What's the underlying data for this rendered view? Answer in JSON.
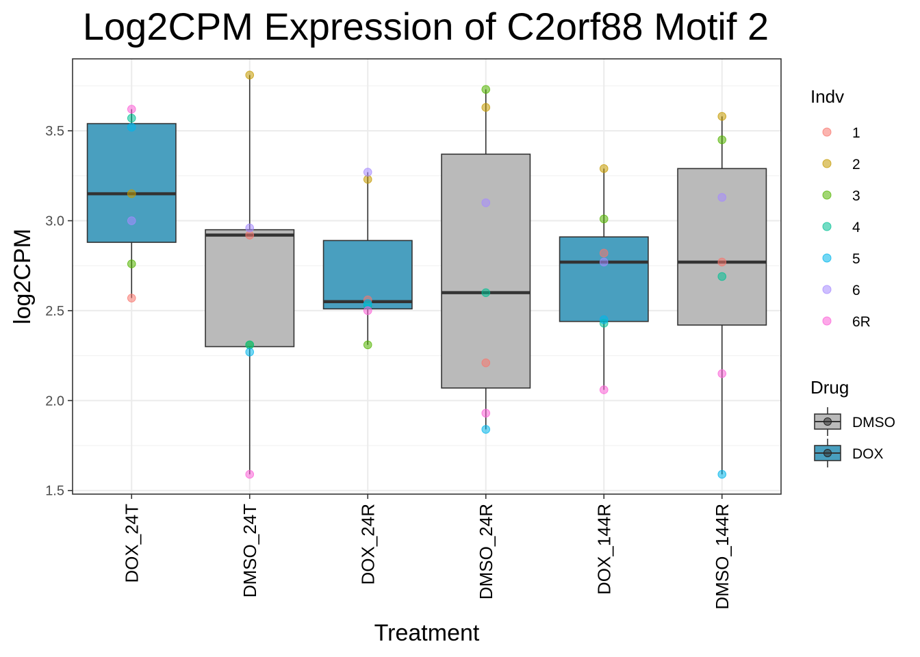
{
  "chart_data": {
    "type": "box",
    "title": "Log2CPM Expression of C2orf88 Motif 2",
    "xlabel": "Treatment",
    "ylabel": "log2CPM",
    "ylim": [
      1.48,
      3.9
    ],
    "yticks": [
      1.5,
      2.0,
      2.5,
      3.0,
      3.5
    ],
    "ytick_labels": [
      "1.5",
      "2.0",
      "2.5",
      "3.0",
      "3.5"
    ],
    "grid": true,
    "categories": [
      "DOX_24T",
      "DMSO_24T",
      "DOX_24R",
      "DMSO_24R",
      "DOX_144R",
      "DMSO_144R"
    ],
    "boxes": [
      {
        "category": "DOX_24T",
        "drug": "DOX",
        "q1": 2.88,
        "median": 3.15,
        "q3": 3.54,
        "whisker_low": 2.57,
        "whisker_high": 3.62
      },
      {
        "category": "DMSO_24T",
        "drug": "DMSO",
        "q1": 2.3,
        "median": 2.92,
        "q3": 2.95,
        "whisker_low": 1.59,
        "whisker_high": 3.81
      },
      {
        "category": "DOX_24R",
        "drug": "DOX",
        "q1": 2.51,
        "median": 2.55,
        "q3": 2.89,
        "whisker_low": 2.31,
        "whisker_high": 3.27
      },
      {
        "category": "DMSO_24R",
        "drug": "DMSO",
        "q1": 2.07,
        "median": 2.6,
        "q3": 3.37,
        "whisker_low": 1.84,
        "whisker_high": 3.73
      },
      {
        "category": "DOX_144R",
        "drug": "DOX",
        "q1": 2.44,
        "median": 2.77,
        "q3": 2.91,
        "whisker_low": 2.06,
        "whisker_high": 3.29
      },
      {
        "category": "DMSO_144R",
        "drug": "DMSO",
        "q1": 2.42,
        "median": 2.77,
        "q3": 3.29,
        "whisker_low": 1.59,
        "whisker_high": 3.58
      }
    ],
    "points": [
      {
        "category": "DOX_24T",
        "indv": "1",
        "value": 2.57
      },
      {
        "category": "DOX_24T",
        "indv": "2",
        "value": 3.15
      },
      {
        "category": "DOX_24T",
        "indv": "3",
        "value": 2.76
      },
      {
        "category": "DOX_24T",
        "indv": "4",
        "value": 3.57
      },
      {
        "category": "DOX_24T",
        "indv": "5",
        "value": 3.52
      },
      {
        "category": "DOX_24T",
        "indv": "6",
        "value": 3.0
      },
      {
        "category": "DOX_24T",
        "indv": "6R",
        "value": 3.62
      },
      {
        "category": "DMSO_24T",
        "indv": "1",
        "value": 2.92
      },
      {
        "category": "DMSO_24T",
        "indv": "2",
        "value": 3.81
      },
      {
        "category": "DMSO_24T",
        "indv": "3",
        "value": 2.31
      },
      {
        "category": "DMSO_24T",
        "indv": "4",
        "value": 2.31
      },
      {
        "category": "DMSO_24T",
        "indv": "5",
        "value": 2.27
      },
      {
        "category": "DMSO_24T",
        "indv": "6",
        "value": 2.96
      },
      {
        "category": "DMSO_24T",
        "indv": "6R",
        "value": 1.59
      },
      {
        "category": "DOX_24R",
        "indv": "1",
        "value": 2.56
      },
      {
        "category": "DOX_24R",
        "indv": "2",
        "value": 3.23
      },
      {
        "category": "DOX_24R",
        "indv": "3",
        "value": 2.31
      },
      {
        "category": "DOX_24R",
        "indv": "4",
        "value": 2.53
      },
      {
        "category": "DOX_24R",
        "indv": "5",
        "value": 2.54
      },
      {
        "category": "DOX_24R",
        "indv": "6",
        "value": 3.27
      },
      {
        "category": "DOX_24R",
        "indv": "6R",
        "value": 2.5
      },
      {
        "category": "DMSO_24R",
        "indv": "1",
        "value": 2.21
      },
      {
        "category": "DMSO_24R",
        "indv": "2",
        "value": 3.63
      },
      {
        "category": "DMSO_24R",
        "indv": "3",
        "value": 3.73
      },
      {
        "category": "DMSO_24R",
        "indv": "4",
        "value": 2.6
      },
      {
        "category": "DMSO_24R",
        "indv": "5",
        "value": 1.84
      },
      {
        "category": "DMSO_24R",
        "indv": "6",
        "value": 3.1
      },
      {
        "category": "DMSO_24R",
        "indv": "6R",
        "value": 1.93
      },
      {
        "category": "DOX_144R",
        "indv": "1",
        "value": 2.82
      },
      {
        "category": "DOX_144R",
        "indv": "2",
        "value": 3.29
      },
      {
        "category": "DOX_144R",
        "indv": "3",
        "value": 3.01
      },
      {
        "category": "DOX_144R",
        "indv": "4",
        "value": 2.43
      },
      {
        "category": "DOX_144R",
        "indv": "5",
        "value": 2.45
      },
      {
        "category": "DOX_144R",
        "indv": "6",
        "value": 2.77
      },
      {
        "category": "DOX_144R",
        "indv": "6R",
        "value": 2.06
      },
      {
        "category": "DMSO_144R",
        "indv": "1",
        "value": 2.77
      },
      {
        "category": "DMSO_144R",
        "indv": "2",
        "value": 3.58
      },
      {
        "category": "DMSO_144R",
        "indv": "3",
        "value": 3.45
      },
      {
        "category": "DMSO_144R",
        "indv": "4",
        "value": 2.69
      },
      {
        "category": "DMSO_144R",
        "indv": "5",
        "value": 1.59
      },
      {
        "category": "DMSO_144R",
        "indv": "6",
        "value": 3.13
      },
      {
        "category": "DMSO_144R",
        "indv": "6R",
        "value": 2.15
      }
    ],
    "legends": [
      {
        "title": "Indv",
        "entries": [
          {
            "label": "1",
            "color": "#f8766d"
          },
          {
            "label": "2",
            "color": "#c49a00"
          },
          {
            "label": "3",
            "color": "#53b400"
          },
          {
            "label": "4",
            "color": "#00c094"
          },
          {
            "label": "5",
            "color": "#00b6eb"
          },
          {
            "label": "6",
            "color": "#a58aff"
          },
          {
            "label": "6R",
            "color": "#fb61d7"
          }
        ]
      },
      {
        "title": "Drug",
        "entries": [
          {
            "label": "DMSO",
            "color": "#bababa"
          },
          {
            "label": "DOX",
            "color": "#499fbf"
          }
        ]
      }
    ],
    "legend_position": "right"
  }
}
